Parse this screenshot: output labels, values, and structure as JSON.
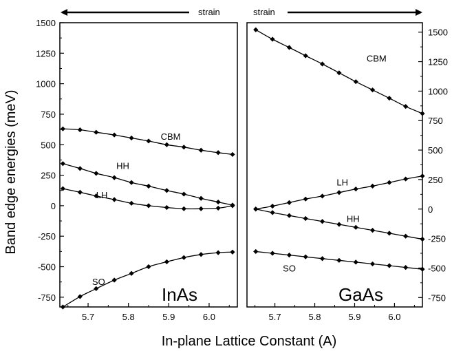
{
  "figure": {
    "ylabel": "Band edge energies (meV)",
    "xlabel": "In-plane Lattice Constant (A)",
    "strain_label": "strain"
  },
  "chart_data": [
    {
      "type": "line",
      "panel_label": "InAs",
      "strain_arrow": "left",
      "xlim": [
        5.63,
        6.07
      ],
      "ylim": [
        -830,
        1500
      ],
      "x_ticks": [
        5.7,
        5.8,
        5.9,
        6.0
      ],
      "x_tick_labels": [
        "5.7",
        "5.8",
        "5.9",
        "6.0"
      ],
      "y_ticks": [
        -750,
        -500,
        -250,
        0,
        250,
        500,
        750,
        1000,
        1250,
        1500
      ],
      "y_tick_labels": [
        "-750",
        "-500",
        "-250",
        "0",
        "250",
        "500",
        "750",
        "1000",
        "1250",
        "1500"
      ],
      "y_axis_side": "left",
      "x": [
        5.6375,
        5.68,
        5.72,
        5.765,
        5.8075,
        5.85,
        5.895,
        5.9375,
        5.98,
        6.0225,
        6.058
      ],
      "series": [
        {
          "name": "CBM",
          "values": [
            630,
            622,
            602,
            580,
            555,
            530,
            500,
            480,
            455,
            435,
            420
          ]
        },
        {
          "name": "HH",
          "values": [
            345,
            305,
            265,
            230,
            190,
            160,
            125,
            95,
            60,
            30,
            5
          ]
        },
        {
          "name": "LH",
          "values": [
            140,
            110,
            80,
            50,
            20,
            0,
            -15,
            -25,
            -25,
            -20,
            0
          ]
        },
        {
          "name": "SO",
          "values": [
            -830,
            -745,
            -680,
            -610,
            -555,
            -500,
            -460,
            -425,
            -400,
            -385,
            -380
          ]
        }
      ],
      "labels": [
        {
          "text": "CBM",
          "x": 5.88,
          "y": 540
        },
        {
          "text": "HH",
          "x": 5.77,
          "y": 300
        },
        {
          "text": "LH",
          "x": 5.72,
          "y": 60
        },
        {
          "text": "SO",
          "x": 5.71,
          "y": -650
        }
      ]
    },
    {
      "type": "line",
      "panel_label": "GaAs",
      "strain_arrow": "right",
      "xlim": [
        5.63,
        6.07
      ],
      "ylim": [
        -830,
        1580
      ],
      "x_ticks": [
        5.7,
        5.8,
        5.9,
        6.0
      ],
      "x_tick_labels": [
        "5.7",
        "5.8",
        "5.9",
        "6.0"
      ],
      "y_ticks": [
        -750,
        -500,
        -250,
        0,
        250,
        500,
        750,
        1000,
        1250,
        1500
      ],
      "y_tick_labels": [
        "-750",
        "-500",
        "-250",
        "0",
        "250",
        "500",
        "750",
        "1000",
        "1250",
        "1500"
      ],
      "y_axis_side": "right",
      "x": [
        5.652,
        5.694,
        5.736,
        5.777,
        5.819,
        5.861,
        5.903,
        5.945,
        5.987,
        6.028,
        6.07
      ],
      "series": [
        {
          "name": "CBM",
          "values": [
            1520,
            1440,
            1370,
            1300,
            1230,
            1155,
            1080,
            1010,
            940,
            870,
            810
          ]
        },
        {
          "name": "LH",
          "values": [
            0,
            25,
            55,
            85,
            110,
            140,
            170,
            195,
            225,
            255,
            280
          ]
        },
        {
          "name": "HH",
          "values": [
            0,
            -30,
            -55,
            -80,
            -105,
            -130,
            -155,
            -180,
            -205,
            -230,
            -255
          ]
        },
        {
          "name": "SO",
          "values": [
            -360,
            -375,
            -390,
            -405,
            -420,
            -435,
            -450,
            -465,
            -480,
            -495,
            -510
          ]
        }
      ],
      "labels": [
        {
          "text": "CBM",
          "x": 5.93,
          "y": 1250
        },
        {
          "text": "LH",
          "x": 5.855,
          "y": 200
        },
        {
          "text": "HH",
          "x": 5.88,
          "y": -110
        },
        {
          "text": "SO",
          "x": 5.72,
          "y": -530
        }
      ]
    }
  ]
}
